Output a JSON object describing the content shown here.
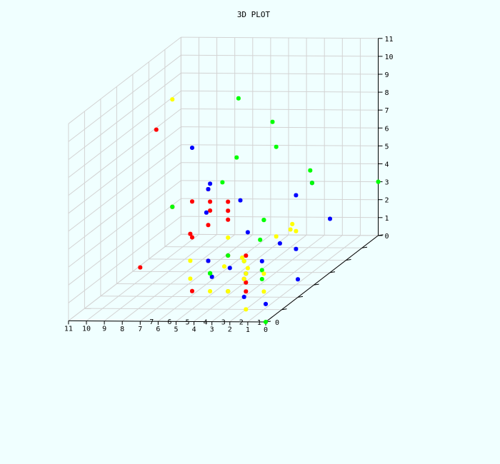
{
  "chart_data": {
    "type": "scatter",
    "title": "3D PLOT",
    "axes": {
      "x": {
        "ticks": [
          "0",
          "1",
          "2",
          "3",
          "4",
          "5",
          "6",
          "7",
          "8",
          "9",
          "10",
          "11"
        ]
      },
      "y": {
        "ticks": [
          "0",
          "1",
          "2",
          "3",
          "4",
          "5",
          "6",
          "7"
        ]
      },
      "z": {
        "ticks": [
          "0",
          "1",
          "2",
          "3",
          "4",
          "5",
          "6",
          "7",
          "8",
          "9",
          "10",
          "11"
        ]
      }
    },
    "grid": true,
    "colors": {
      "background": "#F0FFFF",
      "grid": "#D3D3D3",
      "axis": "#000000"
    },
    "series": [
      {
        "color": "#FF0000",
        "points": [
          [
            7,
            1,
            10
          ],
          [
            5,
            1,
            6
          ],
          [
            4,
            1,
            5.5
          ],
          [
            3,
            1,
            6
          ],
          [
            7,
            2,
            5
          ],
          [
            6,
            2,
            3.5
          ],
          [
            3,
            1,
            3
          ],
          [
            5,
            1,
            4
          ],
          [
            2,
            1,
            3
          ],
          [
            2,
            1,
            1.5
          ],
          [
            5,
            2,
            2
          ],
          [
            2,
            1,
            1
          ],
          [
            3,
            2,
            1
          ],
          [
            5,
            1,
            1
          ],
          [
            7,
            0,
            3
          ],
          [
            5,
            2,
            4
          ],
          [
            5,
            2,
            6
          ],
          [
            4,
            1,
            6
          ],
          [
            3,
            1,
            5.5
          ],
          [
            3,
            1,
            5
          ]
        ]
      },
      {
        "color": "#0000FF",
        "points": [
          [
            5,
            1,
            9
          ],
          [
            4,
            1,
            7
          ],
          [
            5,
            2,
            6
          ],
          [
            0,
            4,
            3
          ],
          [
            1,
            3,
            5
          ],
          [
            1,
            0,
            5
          ],
          [
            1,
            4,
            5
          ],
          [
            6,
            3,
            4
          ],
          [
            5,
            4,
            4
          ],
          [
            1,
            2,
            3
          ],
          [
            2,
            1,
            2
          ],
          [
            3,
            1,
            1
          ],
          [
            0,
            0,
            1
          ],
          [
            5,
            2,
            2
          ],
          [
            2,
            2,
            2
          ],
          [
            3,
            2,
            0
          ],
          [
            3,
            0,
            2.5
          ],
          [
            1,
            3,
            2
          ],
          [
            2,
            0,
            3
          ],
          [
            0,
            2,
            1
          ]
        ]
      },
      {
        "color": "#00FF00",
        "points": [
          [
            6,
            5,
            9
          ],
          [
            6,
            4,
            5
          ],
          [
            3,
            4,
            7
          ],
          [
            7,
            2,
            5
          ],
          [
            2,
            5,
            5
          ],
          [
            5,
            6,
            7
          ],
          [
            1,
            1,
            5
          ],
          [
            0,
            7,
            3
          ],
          [
            2,
            2,
            1
          ],
          [
            2,
            2,
            1.5
          ],
          [
            4,
            1,
            2
          ],
          [
            4,
            1,
            2
          ],
          [
            3,
            2,
            2
          ],
          [
            4,
            1,
            2
          ],
          [
            3,
            3,
            2.5
          ],
          [
            3,
            1,
            3
          ],
          [
            7,
            6,
            5
          ],
          [
            1,
            1,
            5
          ],
          [
            1,
            4,
            5
          ],
          [
            0,
            0,
            0
          ]
        ]
      },
      {
        "color": "#FFFF00",
        "points": [
          [
            7,
            2,
            11
          ],
          [
            6,
            2,
            2
          ],
          [
            3,
            1,
            4
          ],
          [
            2,
            1,
            2
          ],
          [
            6,
            2,
            1
          ],
          [
            1,
            1,
            2
          ],
          [
            1,
            1,
            1
          ],
          [
            2,
            1,
            0
          ],
          [
            5,
            3,
            1
          ],
          [
            4,
            3,
            1.5
          ],
          [
            4,
            6,
            1
          ],
          [
            4,
            1,
            1
          ],
          [
            3,
            1,
            1
          ],
          [
            3,
            2,
            2
          ],
          [
            3,
            4,
            2
          ],
          [
            3,
            2,
            1
          ],
          [
            1,
            0,
            3
          ],
          [
            3,
            5,
            2
          ],
          [
            1,
            3,
            3
          ],
          [
            3,
            1,
            1
          ]
        ]
      }
    ]
  }
}
